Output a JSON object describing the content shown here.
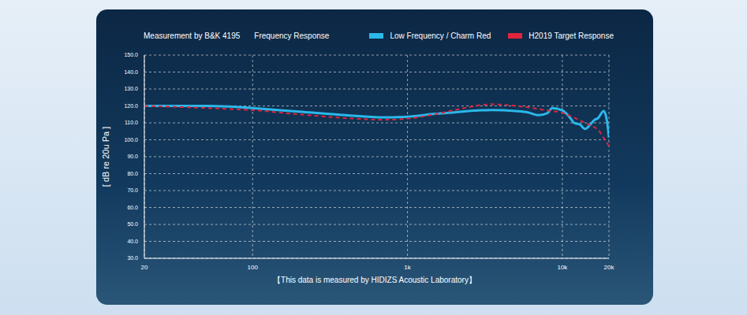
{
  "chart_data": {
    "type": "line",
    "title": "Measurement by B&K 4195",
    "subtitle": "Frequency Response",
    "y_label": "[ dB re 20u Pa ]",
    "annotation": "【This data is measured by HIDIZS Acoustic Laboratory】",
    "log": "x",
    "grid": true,
    "legend": "top right",
    "xlim": [
      20,
      20000
    ],
    "xticks": [
      20,
      100,
      {
        "value": 1000,
        "label": "1k"
      },
      {
        "value": 10000,
        "label": "10k"
      },
      {
        "value": 20000,
        "label": "20k"
      }
    ],
    "ylim": [
      30,
      150
    ],
    "yticks": [
      {
        "value": 30,
        "label": "30.0"
      },
      {
        "value": 40,
        "label": "40.0"
      },
      {
        "value": 50,
        "label": "50.0"
      },
      {
        "value": 60,
        "label": "60.0"
      },
      {
        "value": 70,
        "label": "70.0"
      },
      {
        "value": 80,
        "label": "80.0"
      },
      {
        "value": 90,
        "label": "90.0"
      },
      {
        "value": 100,
        "label": "100.0"
      },
      {
        "value": 110,
        "label": "110.0"
      },
      {
        "value": 120,
        "label": "120.0"
      },
      {
        "value": 130,
        "label": "130.0"
      },
      {
        "value": 140,
        "label": "140.0"
      },
      {
        "value": 150,
        "label": "150.0"
      }
    ],
    "x": [
      20,
      30,
      50,
      70,
      100,
      200,
      400,
      700,
      1000,
      1500,
      2000,
      3000,
      3500,
      5000,
      6000,
      7000,
      8000,
      8600,
      10000,
      11000,
      12000,
      13000,
      14000,
      15000,
      16000,
      17000,
      18500,
      19500,
      20000
    ],
    "series": [
      {
        "name": "Low Frequency / Charm Red",
        "color": "#2bb8ea",
        "line_style": "solid",
        "values": [
          120,
          120,
          120,
          119.6,
          118.7,
          116.6,
          114.5,
          113.2,
          113.6,
          115.3,
          116.2,
          117.4,
          117.6,
          117,
          116.2,
          114.5,
          115.7,
          118.7,
          117.4,
          114,
          109.8,
          109,
          106.4,
          108.5,
          111.5,
          112.8,
          117,
          110,
          101.3
        ]
      },
      {
        "name": "H2019 Target Response",
        "color": "#e0243c",
        "line_style": "dashed",
        "values": [
          120,
          119.5,
          118.8,
          118.2,
          117.5,
          115,
          112.8,
          111.8,
          112.5,
          115,
          117.5,
          120.5,
          121,
          120,
          119.2,
          118.2,
          117.4,
          117,
          116,
          114.5,
          113,
          111.5,
          110,
          108.8,
          107.5,
          106,
          101,
          98,
          96.2
        ]
      }
    ]
  }
}
